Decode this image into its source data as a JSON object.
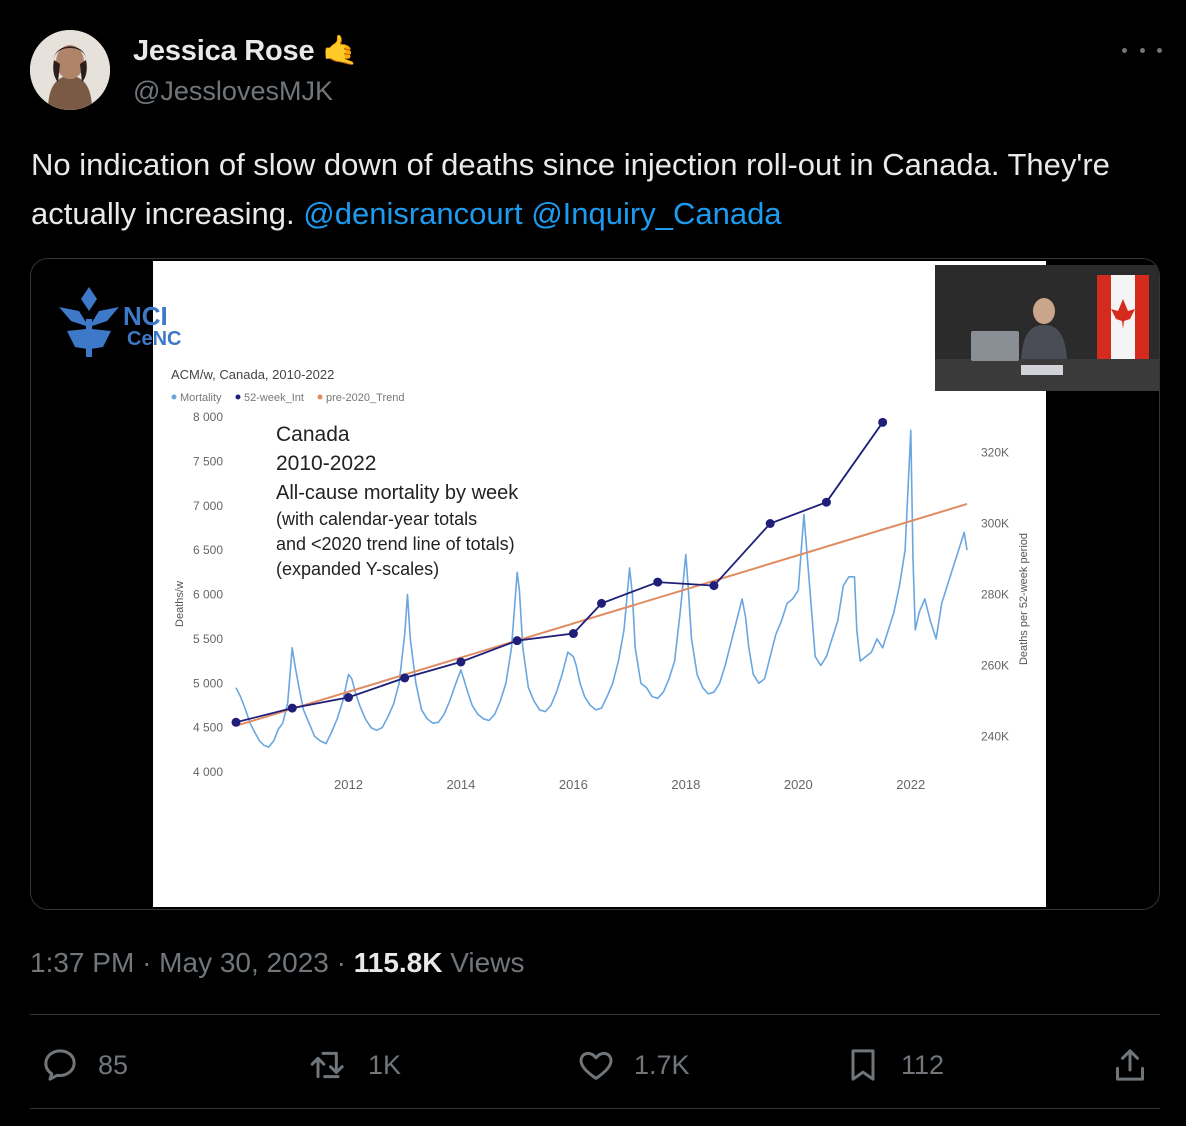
{
  "author": {
    "display_name": "Jessica Rose",
    "emoji": "🤙",
    "handle": "@JesslovesMJK"
  },
  "tweet": {
    "text": "No indication of slow down of deaths since injection roll-out in Canada. They're actually increasing.",
    "mentions": [
      "@denisrancourt",
      "@Inquiry_Canada"
    ]
  },
  "media": {
    "logo_text_1": "NCI",
    "logo_text_2": "CeNC",
    "chart_title": "ACM/w, Canada, 2010-2022",
    "legend": [
      "Mortality",
      "52-week_Int",
      "pre-2020_Trend"
    ],
    "annotation": [
      "Canada",
      "2010-2022",
      "All-cause mortality by week",
      "(with calendar-year totals",
      "and <2020 trend line of totals)",
      "(expanded Y-scales)"
    ],
    "colors": {
      "mortality": "#6aa6e0",
      "annual": "#1f1f7a",
      "trend": "#e08c63",
      "flag_red": "#d52b1e"
    }
  },
  "chart_data": {
    "type": "line",
    "title": "ACM/w, Canada, 2010-2022",
    "xlabel": "",
    "ylabel": "Deaths/w",
    "y2label": "Deaths per 52-week period",
    "x_ticks": [
      "2012",
      "2014",
      "2016",
      "2018",
      "2020",
      "2022"
    ],
    "y_ticks": [
      "8 000",
      "7 500",
      "7 000",
      "6 500",
      "6 000",
      "5 500",
      "5 000",
      "4 500",
      "4 000"
    ],
    "y2_ticks": [
      "320K",
      "300K",
      "280K",
      "260K",
      "240K"
    ],
    "xlim": [
      2010,
      2023.0
    ],
    "ylim": [
      4000,
      8000
    ],
    "y2lim": [
      230000,
      330000
    ],
    "series": [
      {
        "name": "Mortality",
        "x": [
          2010.0,
          2010.08,
          2010.17,
          2010.25,
          2010.33,
          2010.42,
          2010.5,
          2010.58,
          2010.67,
          2010.75,
          2010.83,
          2010.92,
          2011.0,
          2011.05,
          2011.12,
          2011.2,
          2011.3,
          2011.4,
          2011.5,
          2011.6,
          2011.7,
          2011.8,
          2011.9,
          2012.0,
          2012.06,
          2012.12,
          2012.2,
          2012.3,
          2012.4,
          2012.5,
          2012.6,
          2012.7,
          2012.8,
          2012.9,
          2013.0,
          2013.05,
          2013.1,
          2013.2,
          2013.3,
          2013.4,
          2013.5,
          2013.6,
          2013.7,
          2013.8,
          2013.9,
          2014.0,
          2014.05,
          2014.12,
          2014.2,
          2014.3,
          2014.4,
          2014.5,
          2014.6,
          2014.7,
          2014.8,
          2014.9,
          2015.0,
          2015.04,
          2015.1,
          2015.2,
          2015.3,
          2015.4,
          2015.5,
          2015.6,
          2015.7,
          2015.8,
          2015.9,
          2016.0,
          2016.05,
          2016.12,
          2016.2,
          2016.3,
          2016.4,
          2016.5,
          2016.6,
          2016.7,
          2016.8,
          2016.9,
          2017.0,
          2017.05,
          2017.1,
          2017.2,
          2017.3,
          2017.4,
          2017.5,
          2017.6,
          2017.7,
          2017.8,
          2017.9,
          2018.0,
          2018.04,
          2018.1,
          2018.2,
          2018.3,
          2018.4,
          2018.5,
          2018.6,
          2018.7,
          2018.8,
          2018.9,
          2019.0,
          2019.06,
          2019.12,
          2019.2,
          2019.3,
          2019.4,
          2019.5,
          2019.6,
          2019.7,
          2019.8,
          2019.9,
          2020.0,
          2020.1,
          2020.25,
          2020.3,
          2020.4,
          2020.5,
          2020.6,
          2020.7,
          2020.8,
          2020.9,
          2021.0,
          2021.04,
          2021.1,
          2021.2,
          2021.3,
          2021.4,
          2021.5,
          2021.6,
          2021.7,
          2021.8,
          2021.9,
          2022.0,
          2022.04,
          2022.08,
          2022.15,
          2022.25,
          2022.35,
          2022.45,
          2022.55,
          2022.65,
          2022.75,
          2022.85,
          2022.95,
          2023.0
        ],
        "values": [
          4950,
          4850,
          4700,
          4550,
          4450,
          4350,
          4300,
          4280,
          4350,
          4480,
          4550,
          4780,
          5400,
          5200,
          4950,
          4700,
          4550,
          4400,
          4350,
          4320,
          4450,
          4600,
          4800,
          5100,
          5050,
          4900,
          4750,
          4600,
          4500,
          4470,
          4500,
          4620,
          4760,
          5000,
          5550,
          6000,
          5500,
          5000,
          4700,
          4600,
          4550,
          4560,
          4650,
          4800,
          4980,
          5150,
          5050,
          4900,
          4750,
          4650,
          4600,
          4580,
          4650,
          4800,
          5000,
          5400,
          6250,
          6050,
          5400,
          4950,
          4800,
          4700,
          4680,
          4750,
          4900,
          5100,
          5350,
          5300,
          5200,
          5000,
          4850,
          4750,
          4700,
          4720,
          4850,
          5000,
          5250,
          5600,
          6300,
          6000,
          5400,
          5000,
          4950,
          4850,
          4830,
          4900,
          5050,
          5250,
          5800,
          6450,
          6100,
          5500,
          5100,
          4950,
          4880,
          4900,
          5000,
          5200,
          5450,
          5700,
          5950,
          5750,
          5400,
          5100,
          5000,
          5050,
          5300,
          5550,
          5700,
          5900,
          5950,
          6050,
          6900,
          5700,
          5300,
          5200,
          5300,
          5500,
          5700,
          6100,
          6200,
          6200,
          5600,
          5250,
          5300,
          5350,
          5500,
          5400,
          5600,
          5800,
          6100,
          6500,
          7850,
          6400,
          5600,
          5800,
          5950,
          5700,
          5500,
          5900,
          6100,
          6300,
          6500,
          6700,
          6500
        ],
        "color": "#6aa6e0"
      },
      {
        "name": "52-week_Int",
        "x": [
          2010.0,
          2011.0,
          2012.0,
          2013.0,
          2014.0,
          2015.0,
          2016.0,
          2016.5,
          2017.5,
          2018.5,
          2019.5,
          2020.5,
          2021.5
        ],
        "values": [
          244000,
          248000,
          251000,
          256500,
          261000,
          267000,
          269000,
          277500,
          283500,
          282500,
          300000,
          306000,
          328500
        ],
        "color": "#1f1f7a"
      },
      {
        "name": "pre-2020_Trend",
        "x": [
          2010.0,
          2023.0
        ],
        "values": [
          243000,
          305500
        ],
        "color": "#e08c63"
      }
    ]
  },
  "timestamp": {
    "time": "1:37 PM",
    "date": "May 30, 2023",
    "views_count": "115.8K",
    "views_label": "Views"
  },
  "actions": {
    "replies": "85",
    "reposts": "1K",
    "likes": "1.7K",
    "bookmarks": "112"
  }
}
